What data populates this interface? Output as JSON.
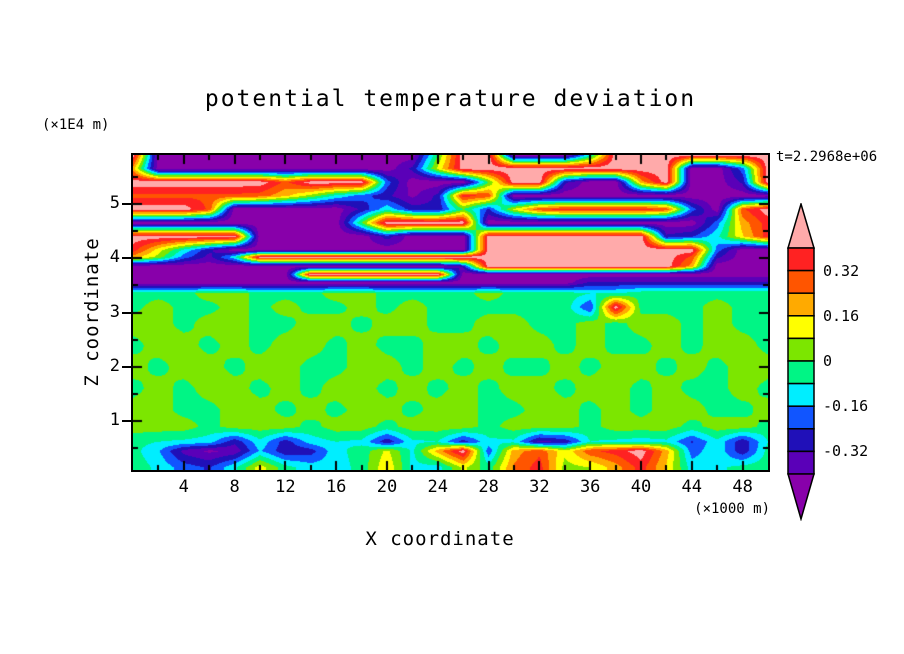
{
  "title": "potential temperature deviation",
  "annotations": {
    "y_unit": "(×1E4 m)",
    "x_unit": "(×1000 m)",
    "time_label": "t=2.2968e+06"
  },
  "x_axis": {
    "label": "X coordinate",
    "range": [
      0,
      50
    ],
    "major_ticks": [
      4,
      8,
      12,
      16,
      20,
      24,
      28,
      32,
      36,
      40,
      44,
      48
    ],
    "minor_step": 2
  },
  "y_axis": {
    "label": "Z coordinate",
    "range": [
      0.1,
      5.9
    ],
    "major_ticks": [
      1,
      2,
      3,
      4,
      5
    ],
    "minor_step": 0.5
  },
  "colorbar": {
    "tick_labels": [
      "0.32",
      "0.16",
      "0",
      "-0.16",
      "-0.32"
    ],
    "box_colors_top_to_bottom": [
      "#FF2222",
      "#FF5500",
      "#FFAA00",
      "#FFFF00",
      "#7CE600",
      "#00F585",
      "#00EEFF",
      "#1155FF",
      "#2010B8",
      "#5A00B8"
    ],
    "over_color": "#FFAAAA",
    "under_color": "#8800AA",
    "outline_color": "#000000"
  },
  "chart_data": {
    "type": "heatmap",
    "title": "potential temperature deviation",
    "xlabel": "X coordinate (×1000 m)",
    "ylabel": "Z coordinate (×1E4 m)",
    "contour_interval": 0.08,
    "level_range": [
      -0.4,
      0.4
    ],
    "palette_low_to_high": [
      "#8800AA",
      "#5A00B8",
      "#2010B8",
      "#1155FF",
      "#00EEFF",
      "#00F585",
      "#7CE600",
      "#FFFF00",
      "#FFAA00",
      "#FF5500",
      "#FF2222",
      "#FFAAAA"
    ],
    "x_points": [
      0,
      2,
      4,
      6,
      8,
      10,
      12,
      14,
      16,
      18,
      20,
      22,
      24,
      26,
      28,
      30,
      32,
      34,
      36,
      38,
      40,
      42,
      44,
      46,
      48,
      50
    ],
    "z_rows_top_to_bottom": [
      5.9,
      5.65,
      5.4,
      5.15,
      4.9,
      4.65,
      4.4,
      4.15,
      4.02,
      3.85,
      3.7,
      3.55,
      3.35,
      3.1,
      2.8,
      2.4,
      2.0,
      1.6,
      1.2,
      0.9,
      0.62,
      0.45,
      0.15
    ],
    "values": [
      [
        0.45,
        -0.45,
        -0.45,
        -0.45,
        -0.45,
        -0.45,
        -0.45,
        -0.45,
        -0.45,
        -0.45,
        -0.45,
        -0.45,
        0,
        0.45,
        0.45,
        -0.45,
        -0.45,
        -0.45,
        -0.1,
        0.45,
        0.45,
        0.45,
        0.45,
        0.45,
        0.45,
        0.45
      ],
      [
        0.2,
        -0.45,
        -0.45,
        -0.45,
        -0.45,
        -0.45,
        -0.45,
        -0.45,
        -0.45,
        -0.45,
        -0.45,
        -0.3,
        0.1,
        0.45,
        0.45,
        0.45,
        0.45,
        0.45,
        0.45,
        0.45,
        0.45,
        0.45,
        -0.45,
        -0.45,
        -0.2,
        0.45
      ],
      [
        0.45,
        0.45,
        0.45,
        0.45,
        0.45,
        0.45,
        0.3,
        0.45,
        0.45,
        0.45,
        -0.2,
        -0.45,
        -0.45,
        -0.45,
        0,
        0.45,
        0.45,
        -0.3,
        -0.45,
        -0.45,
        0.2,
        0.45,
        -0.45,
        -0.45,
        -0.3,
        0.45
      ],
      [
        0.3,
        0.3,
        0.3,
        0.3,
        0.3,
        0.28,
        0.18,
        0.05,
        -0.1,
        -0.2,
        -0.3,
        -0.42,
        -0.3,
        0.36,
        0.3,
        -0.45,
        -0.45,
        -0.45,
        -0.45,
        -0.45,
        -0.45,
        -0.45,
        -0.45,
        -0.45,
        -0.45,
        -0.45
      ],
      [
        0.45,
        0.45,
        0.45,
        0.3,
        -0.45,
        -0.45,
        -0.45,
        -0.45,
        -0.45,
        -0.3,
        -0.1,
        -0.28,
        -0.3,
        0,
        -0.25,
        0.1,
        0.3,
        0.36,
        0.36,
        0.36,
        0.36,
        0.3,
        -0.2,
        -0.45,
        0.3,
        0.45
      ],
      [
        -0.45,
        -0.45,
        -0.45,
        -0.45,
        -0.45,
        -0.45,
        -0.45,
        -0.45,
        -0.45,
        0,
        0.45,
        0.45,
        0.45,
        0.45,
        -0.45,
        -0.45,
        -0.45,
        -0.45,
        -0.45,
        -0.45,
        -0.45,
        -0.45,
        -0.45,
        -0.2,
        0.2,
        0.36
      ],
      [
        0.45,
        0.45,
        0.45,
        0.45,
        0.45,
        -0.45,
        -0.45,
        -0.45,
        -0.45,
        -0.45,
        -0.28,
        -0.45,
        -0.45,
        -0.45,
        0.45,
        0.45,
        0.45,
        0.45,
        0.45,
        0.45,
        0.45,
        -0.3,
        -0.25,
        -0.1,
        0.15,
        0.36
      ],
      [
        0.36,
        0.12,
        -0.1,
        -0.3,
        -0.45,
        -0.45,
        -0.45,
        -0.45,
        -0.45,
        -0.45,
        -0.45,
        -0.45,
        -0.45,
        -0.45,
        0.45,
        0.45,
        0.45,
        0.45,
        0.45,
        0.45,
        0.45,
        0.45,
        0.45,
        -0.2,
        -0.45,
        -0.45
      ],
      [
        0.2,
        0.05,
        -0.2,
        -0.35,
        -0.1,
        0.45,
        0.45,
        0.45,
        0.45,
        0.45,
        0.45,
        0.45,
        0.45,
        0.45,
        0.45,
        0.45,
        0.45,
        0.45,
        0.45,
        0.45,
        0.45,
        0.45,
        0.3,
        -0.3,
        -0.45,
        -0.45
      ],
      [
        -0.45,
        -0.45,
        -0.45,
        -0.45,
        -0.45,
        -0.45,
        -0.45,
        -0.45,
        -0.45,
        -0.45,
        -0.45,
        -0.45,
        -0.45,
        -0.3,
        0.45,
        0.45,
        0.45,
        0.45,
        0.45,
        0.45,
        0.45,
        0.45,
        0.2,
        -0.45,
        -0.45,
        -0.45
      ],
      [
        -0.45,
        -0.45,
        -0.45,
        -0.45,
        -0.45,
        -0.45,
        -0.45,
        0.45,
        0.45,
        0.45,
        0.45,
        0.45,
        0.45,
        -0.45,
        -0.45,
        -0.45,
        -0.45,
        -0.45,
        -0.45,
        -0.45,
        -0.45,
        -0.45,
        -0.45,
        -0.45,
        -0.45,
        -0.45
      ],
      [
        -0.45,
        -0.45,
        -0.45,
        -0.45,
        -0.45,
        -0.45,
        -0.45,
        -0.45,
        -0.45,
        -0.45,
        -0.45,
        -0.45,
        -0.45,
        -0.45,
        -0.45,
        -0.45,
        -0.45,
        -0.45,
        -0.3,
        -0.3,
        -0.3,
        -0.3,
        -0.3,
        -0.3,
        -0.3,
        -0.3
      ],
      [
        -0.03,
        -0.03,
        -0.03,
        0.04,
        0.04,
        -0.03,
        -0.03,
        -0.03,
        0.04,
        0.04,
        -0.03,
        -0.03,
        -0.03,
        -0.03,
        0.04,
        -0.03,
        -0.03,
        -0.03,
        -0.08,
        -0.08,
        -0.03,
        -0.03,
        -0.03,
        -0.03,
        -0.03,
        -0.03
      ],
      [
        -0.03,
        0.04,
        -0.03,
        -0.03,
        0.04,
        -0.03,
        0.04,
        -0.03,
        -0.03,
        0.04,
        -0.03,
        0.04,
        -0.03,
        -0.03,
        -0.03,
        -0.03,
        -0.03,
        -0.03,
        -0.25,
        0.45,
        -0.03,
        -0.03,
        -0.03,
        0.04,
        -0.03,
        -0.03
      ],
      [
        0.04,
        0.04,
        -0.03,
        0.04,
        0.04,
        -0.03,
        -0.03,
        0.04,
        0.04,
        -0.03,
        0.04,
        0.04,
        -0.03,
        -0.03,
        0.04,
        0.04,
        -0.03,
        -0.03,
        0.04,
        -0.03,
        0.04,
        0.04,
        -0.03,
        0.04,
        -0.03,
        -0.03
      ],
      [
        -0.03,
        0.04,
        0.04,
        -0.03,
        0.04,
        -0.03,
        0.04,
        0.04,
        -0.03,
        0.04,
        -0.03,
        -0.03,
        0.04,
        0.04,
        -0.03,
        0.04,
        0.04,
        -0.03,
        0.04,
        -0.03,
        -0.03,
        0.04,
        -0.03,
        0.04,
        0.04,
        -0.03
      ],
      [
        0.04,
        -0.03,
        0.04,
        0.04,
        -0.03,
        0.04,
        0.04,
        -0.03,
        -0.03,
        0.04,
        0.04,
        -0.03,
        0.04,
        -0.03,
        0.04,
        -0.03,
        -0.03,
        0.04,
        -0.03,
        0.04,
        0.04,
        -0.03,
        0.04,
        -0.03,
        0.04,
        0.04
      ],
      [
        -0.03,
        0.04,
        -0.03,
        0.04,
        0.04,
        -0.03,
        0.04,
        -0.03,
        0.04,
        0.04,
        -0.03,
        0.04,
        -0.03,
        0.04,
        -0.03,
        0.04,
        0.04,
        -0.03,
        0.04,
        0.04,
        -0.03,
        0.04,
        -0.03,
        -0.03,
        0.04,
        -0.03
      ],
      [
        0.04,
        0.04,
        -0.03,
        -0.03,
        0.04,
        0.04,
        -0.03,
        0.04,
        -0.03,
        0.04,
        0.04,
        -0.03,
        0.04,
        0.04,
        -0.03,
        -0.03,
        0.04,
        0.04,
        -0.03,
        0.04,
        -0.03,
        0.04,
        0.04,
        -0.03,
        -0.03,
        0.04
      ],
      [
        0.04,
        0.04,
        0.04,
        -0.03,
        0.04,
        0.04,
        0.04,
        -0.03,
        0.04,
        0.04,
        -0.03,
        0.04,
        0.04,
        0.04,
        -0.03,
        0.04,
        0.04,
        0.04,
        -0.03,
        0.04,
        0.04,
        0.04,
        -0.03,
        0.04,
        0.04,
        -0.03
      ],
      [
        -0.05,
        -0.08,
        -0.1,
        -0.12,
        -0.3,
        -0.1,
        -0.28,
        -0.12,
        -0.08,
        -0.1,
        -0.3,
        -0.1,
        -0.08,
        -0.28,
        -0.1,
        -0.1,
        -0.35,
        -0.3,
        -0.08,
        -0.1,
        -0.12,
        -0.1,
        -0.25,
        -0.1,
        -0.3,
        -0.08
      ],
      [
        -0.05,
        -0.15,
        -0.35,
        -0.42,
        -0.38,
        -0.15,
        -0.3,
        -0.28,
        -0.1,
        -0.05,
        0.1,
        -0.1,
        0.2,
        0.45,
        -0.22,
        0.2,
        0.3,
        0.1,
        0.3,
        0.36,
        0.45,
        0.2,
        -0.2,
        -0.1,
        -0.3,
        -0.05
      ],
      [
        -0.03,
        -0.1,
        -0.2,
        -0.25,
        -0.1,
        0.12,
        -0.05,
        -0.12,
        -0.12,
        -0.05,
        0.15,
        -0.1,
        -0.12,
        0.1,
        -0.05,
        0.25,
        0.36,
        0.05,
        0.08,
        0.2,
        0.36,
        0.15,
        -0.12,
        -0.1,
        -0.05,
        -0.03
      ]
    ]
  }
}
